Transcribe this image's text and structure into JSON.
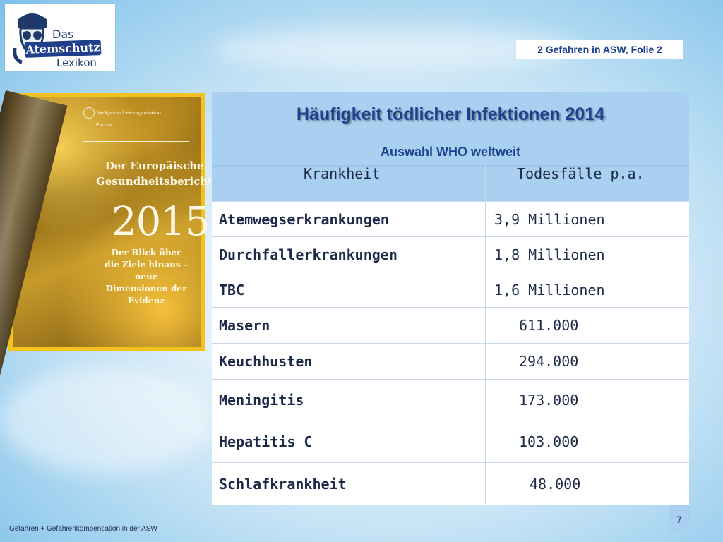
{
  "logo": {
    "line1": "Das",
    "line2": "Atemschutz",
    "line3": "Lexikon"
  },
  "slide_tag": "2 Gefahren in ASW, Folie 2",
  "cover": {
    "publisher": "Weltgesundheitsorganisation",
    "region": "Europa",
    "title_line1": "Der Europäische",
    "title_line2": "Gesundheitsbericht",
    "year": "2015",
    "sub_line1": "Der Blick über",
    "sub_line2": "die Ziele hinaus – neue",
    "sub_line3": "Dimensionen der Evidenz"
  },
  "table": {
    "title": "Häufigkeit tödlicher Infektionen 2014",
    "subtitle": "Auswahl WHO weltweit",
    "col1": "Krankheit",
    "col2": "Todesfälle p.a.",
    "rows": [
      {
        "name": "Atemwegserkrankungen",
        "value": "3,9 Millionen"
      },
      {
        "name": "Durchfallerkrankungen",
        "value": "1,8 Millionen"
      },
      {
        "name": "TBC",
        "value": "1,6 Millionen"
      },
      {
        "name": "Masern",
        "value": "611.000"
      },
      {
        "name": "Keuchhusten",
        "value": "294.000"
      },
      {
        "name": "Meningitis",
        "value": "173.000"
      },
      {
        "name": "Hepatitis C",
        "value": "103.000"
      },
      {
        "name": "Schlafkrankheit",
        "value": "48.000"
      }
    ]
  },
  "footer": "Gefahren + Gefahrenkompensation in der ASW",
  "page_number": "7",
  "colors": {
    "accent": "#1d3f8f",
    "header_bg": "#a9d0f0",
    "cover_frame": "#f3c21f"
  }
}
